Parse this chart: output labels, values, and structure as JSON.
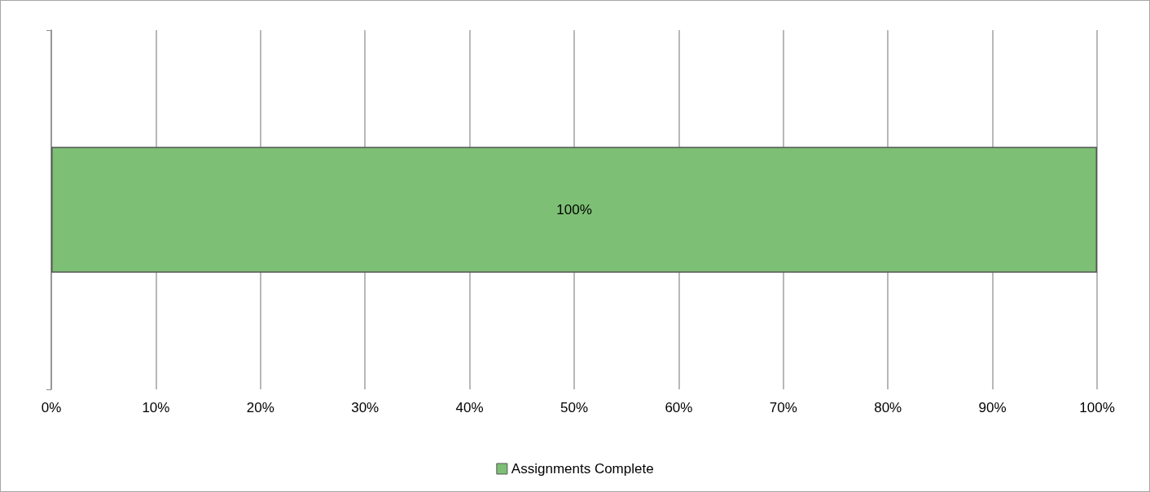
{
  "chart_data": {
    "type": "bar",
    "orientation": "horizontal",
    "categories": [
      null
    ],
    "series": [
      {
        "name": "Assignments Complete",
        "color": "#7dbf75",
        "values": [
          100
        ],
        "value_labels": [
          "100%"
        ]
      }
    ],
    "xlim": [
      0,
      100
    ],
    "xticks": [
      {
        "value": 0,
        "label": "0%"
      },
      {
        "value": 10,
        "label": "10%"
      },
      {
        "value": 20,
        "label": "20%"
      },
      {
        "value": 30,
        "label": "30%"
      },
      {
        "value": 40,
        "label": "40%"
      },
      {
        "value": 50,
        "label": "50%"
      },
      {
        "value": 60,
        "label": "60%"
      },
      {
        "value": 70,
        "label": "70%"
      },
      {
        "value": 80,
        "label": "80%"
      },
      {
        "value": 90,
        "label": "90%"
      },
      {
        "value": 100,
        "label": "100%"
      }
    ],
    "grid": "x",
    "legend": "bottom"
  }
}
